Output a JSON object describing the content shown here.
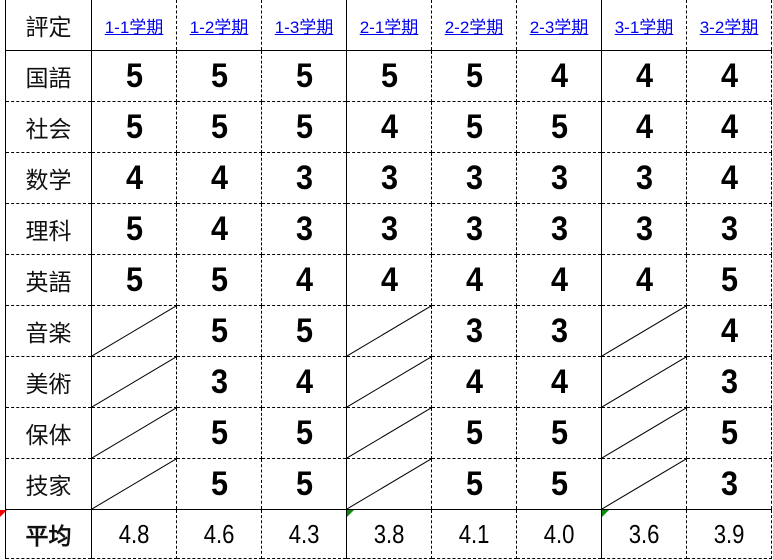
{
  "header": {
    "label": "評定",
    "terms": [
      "1-1学期",
      "1-2学期",
      "1-3学期",
      "2-1学期",
      "2-2学期",
      "2-3学期",
      "3-1学期",
      "3-2学期"
    ]
  },
  "rows": [
    {
      "subject": "国語",
      "grades": [
        "5",
        "5",
        "5",
        "5",
        "5",
        "4",
        "4",
        "4"
      ]
    },
    {
      "subject": "社会",
      "grades": [
        "5",
        "5",
        "5",
        "4",
        "5",
        "5",
        "4",
        "4"
      ]
    },
    {
      "subject": "数学",
      "grades": [
        "4",
        "4",
        "3",
        "3",
        "3",
        "3",
        "3",
        "4"
      ]
    },
    {
      "subject": "理科",
      "grades": [
        "5",
        "4",
        "3",
        "3",
        "3",
        "3",
        "3",
        "3"
      ]
    },
    {
      "subject": "英語",
      "grades": [
        "5",
        "5",
        "4",
        "4",
        "4",
        "4",
        "4",
        "5"
      ]
    },
    {
      "subject": "音楽",
      "grades": [
        "",
        "5",
        "5",
        "",
        "3",
        "3",
        "",
        "4"
      ]
    },
    {
      "subject": "美術",
      "grades": [
        "",
        "3",
        "4",
        "",
        "4",
        "4",
        "",
        "3"
      ]
    },
    {
      "subject": "保体",
      "grades": [
        "",
        "5",
        "5",
        "",
        "5",
        "5",
        "",
        "5"
      ]
    },
    {
      "subject": "技家",
      "grades": [
        "",
        "5",
        "5",
        "",
        "5",
        "5",
        "",
        "3"
      ]
    }
  ],
  "average": {
    "label": "平均",
    "values": [
      "4.8",
      "4.6",
      "4.3",
      "3.8",
      "4.1",
      "4.0",
      "3.6",
      "3.9"
    ]
  },
  "colors": {
    "link": "#0000ee",
    "error_marker": "#0a8a0a",
    "comment_marker": "#ee0000"
  }
}
